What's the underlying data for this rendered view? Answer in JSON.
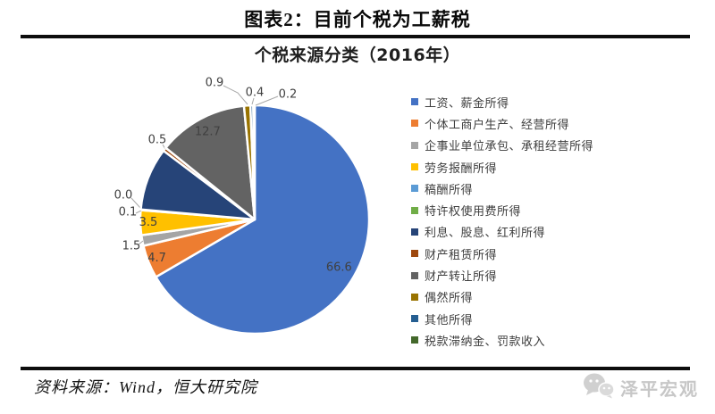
{
  "header": {
    "title": "图表2：目前个税为工薪税"
  },
  "chart_data": {
    "type": "pie",
    "title": "个税来源分类（2016年）",
    "unit": "percent",
    "start_angle_deg": 0,
    "direction": "clockwise",
    "legend_position": "right",
    "series": [
      {
        "name": "工资、薪金所得",
        "value": 66.6,
        "color": "#4472C4"
      },
      {
        "name": "个体工商户生产、经营所得",
        "value": 4.7,
        "color": "#ED7D31"
      },
      {
        "name": "企事业单位承包、承租经营所得",
        "value": 1.5,
        "color": "#A5A5A5"
      },
      {
        "name": "劳务报酬所得",
        "value": 3.5,
        "color": "#FFC000"
      },
      {
        "name": "稿酬所得",
        "value": 0.1,
        "color": "#5B9BD5"
      },
      {
        "name": "特许权使用费所得",
        "value": 0.0,
        "color": "#70AD47"
      },
      {
        "name": "利息、股息、红利所得",
        "value": 8.9,
        "color": "#264478"
      },
      {
        "name": "财产租赁所得",
        "value": 0.5,
        "color": "#9E480E"
      },
      {
        "name": "财产转让所得",
        "value": 12.7,
        "color": "#636363"
      },
      {
        "name": "偶然所得",
        "value": 0.9,
        "color": "#997300"
      },
      {
        "name": "其他所得",
        "value": 0.4,
        "color": "#255E91"
      },
      {
        "name": "税款滞纳金、罚款收入",
        "value": 0.2,
        "color": "#43682B"
      }
    ],
    "unlabeled_slices": [
      "利息、股息、红利所得"
    ],
    "label_color": "#404040"
  },
  "footer": {
    "source": "资料来源：Wind，恒大研究院",
    "watermark": "泽平宏观"
  }
}
